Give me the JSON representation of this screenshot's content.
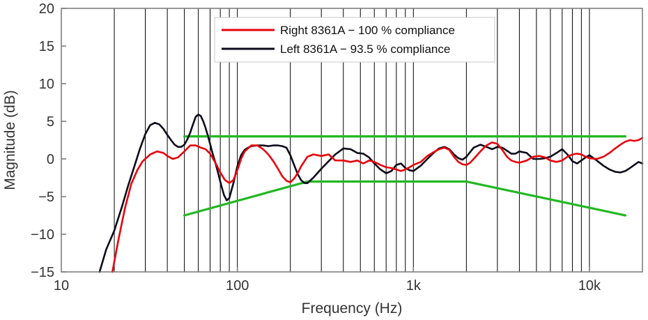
{
  "chart_data": {
    "type": "line",
    "title": "",
    "xlabel": "Frequency (Hz)",
    "ylabel": "Magnitude (dB)",
    "xscale": "log",
    "xlim": [
      10,
      20000
    ],
    "ylim": [
      -15,
      20
    ],
    "grid": "vertical log grid lines",
    "legend_position": "top-right",
    "x_ticks": [
      {
        "value": 10,
        "label": "10"
      },
      {
        "value": 100,
        "label": "100"
      },
      {
        "value": 1000,
        "label": "1k"
      },
      {
        "value": 10000,
        "label": "10k"
      }
    ],
    "y_ticks": [
      {
        "value": 20,
        "label": "20"
      },
      {
        "value": 15,
        "label": "15"
      },
      {
        "value": 10,
        "label": "10"
      },
      {
        "value": 5,
        "label": "5"
      },
      {
        "value": 0,
        "label": "0"
      },
      {
        "value": -5,
        "label": "−5"
      },
      {
        "value": -10,
        "label": "−10"
      },
      {
        "value": -15,
        "label": "−15"
      }
    ],
    "series": [
      {
        "name": "Right 8361A − 100 % compliance",
        "color": "#e8000b",
        "x": [
          19.5,
          21,
          23,
          25,
          27,
          29,
          32,
          35,
          38,
          40,
          43,
          46,
          50,
          54,
          58,
          62,
          66,
          70,
          75,
          80,
          85,
          90,
          95,
          100,
          105,
          110,
          120,
          130,
          140,
          150,
          160,
          170,
          180,
          190,
          200,
          210,
          220,
          230,
          250,
          270,
          300,
          330,
          360,
          400,
          440,
          480,
          520,
          560,
          600,
          650,
          700,
          750,
          800,
          850,
          900,
          950,
          1000,
          1100,
          1200,
          1300,
          1400,
          1500,
          1600,
          1700,
          1800,
          1900,
          2000,
          2100,
          2200,
          2400,
          2600,
          2800,
          3000,
          3200,
          3400,
          3600,
          3800,
          4000,
          4400,
          4800,
          5200,
          5600,
          6000,
          6500,
          7000,
          7500,
          8000,
          8500,
          9000,
          9500,
          10000,
          11000,
          12000,
          13000,
          14000,
          15000,
          16000,
          17000,
          18000,
          19000,
          20000
        ],
        "y": [
          -15,
          -11,
          -6.5,
          -3.3,
          -1.5,
          -0.3,
          0.6,
          1.0,
          0.8,
          0.4,
          0.0,
          0.2,
          1.0,
          1.8,
          1.8,
          1.5,
          1.3,
          0.7,
          -0.5,
          -1.8,
          -2.8,
          -3.2,
          -2.8,
          -1.5,
          0.0,
          1.0,
          1.8,
          1.8,
          1.3,
          0.6,
          -0.3,
          -1.3,
          -2.3,
          -2.9,
          -3.1,
          -2.6,
          -1.9,
          -1.0,
          0.3,
          0.6,
          0.4,
          0.6,
          -0.2,
          -0.2,
          -0.4,
          -0.2,
          -0.6,
          -0.2,
          -0.4,
          -0.8,
          -1.1,
          -1.2,
          -1.4,
          -1.6,
          -1.4,
          -1.1,
          -0.8,
          -0.4,
          0.4,
          0.9,
          1.3,
          1.5,
          1.2,
          0.3,
          -0.4,
          -0.7,
          -0.8,
          -0.5,
          0.0,
          1.0,
          1.8,
          2.2,
          2.0,
          1.2,
          0.3,
          -0.2,
          -0.4,
          -0.5,
          -0.2,
          0.3,
          0.4,
          0.2,
          -0.2,
          -0.4,
          -0.2,
          0.3,
          0.6,
          0.7,
          0.6,
          0.3,
          0.1,
          0.0,
          0.3,
          0.8,
          1.4,
          1.9,
          2.3,
          2.5,
          2.4,
          2.5,
          2.8
        ]
      },
      {
        "name": "Left 8361A − 93.5 % compliance",
        "color": "#0b0b1a",
        "x": [
          16.5,
          18,
          20,
          22,
          24,
          26,
          28,
          30,
          32,
          34,
          36,
          38,
          40,
          42,
          44,
          46,
          48,
          50,
          52,
          54,
          56,
          58,
          60,
          62,
          64,
          66,
          68,
          70,
          72,
          75,
          78,
          81,
          84,
          87,
          90,
          95,
          100,
          105,
          110,
          115,
          120,
          130,
          140,
          150,
          160,
          170,
          180,
          190,
          200,
          210,
          220,
          230,
          240,
          250,
          270,
          300,
          330,
          360,
          400,
          440,
          480,
          520,
          560,
          600,
          650,
          700,
          750,
          800,
          850,
          900,
          950,
          1000,
          1100,
          1200,
          1300,
          1400,
          1500,
          1600,
          1700,
          1800,
          1900,
          2000,
          2200,
          2400,
          2600,
          2800,
          3000,
          3200,
          3400,
          3600,
          3800,
          4000,
          4400,
          4800,
          5200,
          5600,
          6000,
          6500,
          7000,
          7500,
          8000,
          8500,
          9000,
          9500,
          10000,
          11000,
          12000,
          13000,
          14000,
          15000,
          16000,
          17000,
          18000,
          19000,
          20000
        ],
        "y": [
          -15,
          -12,
          -9.5,
          -6.5,
          -3.5,
          -1.0,
          1.4,
          3.3,
          4.5,
          4.8,
          4.6,
          4.0,
          3.2,
          2.5,
          1.9,
          1.6,
          1.6,
          1.9,
          2.6,
          3.5,
          4.6,
          5.6,
          5.9,
          5.7,
          5.0,
          4.1,
          3.1,
          2.0,
          0.9,
          -0.5,
          -2.0,
          -3.5,
          -4.8,
          -5.5,
          -5.2,
          -3.2,
          -1.0,
          0.5,
          1.2,
          1.5,
          1.7,
          1.8,
          1.8,
          1.7,
          1.8,
          1.8,
          1.7,
          1.5,
          0.5,
          -0.8,
          -2.0,
          -2.8,
          -3.2,
          -3.2,
          -2.5,
          -1.3,
          -0.3,
          0.6,
          1.4,
          1.3,
          0.8,
          0.7,
          0.2,
          -0.6,
          -1.4,
          -1.9,
          -1.6,
          -0.8,
          -0.6,
          -1.2,
          -1.5,
          -1.6,
          -0.9,
          0.0,
          0.8,
          1.4,
          1.6,
          1.3,
          0.6,
          0.1,
          -0.1,
          0.3,
          1.5,
          1.9,
          1.6,
          1.3,
          1.6,
          1.5,
          1.1,
          0.7,
          0.7,
          1.0,
          0.8,
          0.0,
          0.0,
          0.1,
          0.3,
          0.8,
          1.3,
          0.6,
          -0.3,
          -0.6,
          -0.2,
          0.2,
          0.5,
          -0.2,
          -0.9,
          -1.4,
          -1.7,
          -1.8,
          -1.6,
          -1.2,
          -0.8,
          -0.4,
          -0.6
        ]
      },
      {
        "color": "#22b822",
        "x": [
          50,
          16000
        ],
        "y": [
          3,
          3
        ]
      },
      {
        "color": "#22b822",
        "x": [
          50,
          250,
          2000,
          16000
        ],
        "y": [
          -7.5,
          -3,
          -3,
          -7.5
        ]
      }
    ],
    "colors": {
      "frame": "#777777",
      "grid": "#000000"
    }
  }
}
